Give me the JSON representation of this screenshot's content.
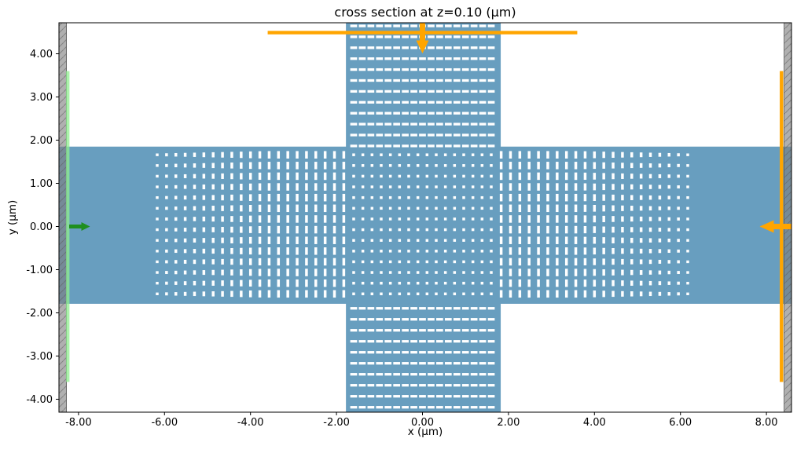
{
  "figure": {
    "title": "cross section at z=0.10 (μm)",
    "xlabel": "x (μm)",
    "ylabel": "y (μm)",
    "background": "#ffffff"
  },
  "chart_data": {
    "type": "simulation-cross-section-2d",
    "title": "cross section at z=0.10 (μm)",
    "xlabel": "x (μm)",
    "ylabel": "y (μm)",
    "xlim": [
      -8.455,
      8.583
    ],
    "ylim": [
      -4.3,
      4.718
    ],
    "xticks": [
      -8,
      -6,
      -4,
      -2,
      0,
      2,
      4,
      6,
      8
    ],
    "xtick_labels": [
      "-8.00",
      "-6.00",
      "-4.00",
      "-2.00",
      "0.00",
      "2.00",
      "4.00",
      "6.00",
      "8.00"
    ],
    "yticks": [
      -4,
      -3,
      -2,
      -1,
      0,
      1,
      2,
      3,
      4
    ],
    "ytick_labels": [
      "-4.00",
      "-3.00",
      "-2.00",
      "-1.00",
      "0.00",
      "1.00",
      "2.00",
      "3.00",
      "4.00"
    ],
    "grid": false,
    "colors": {
      "material": "#689EBF",
      "hole": "#FFFFFF",
      "pml": "#808080",
      "source_line": "#90EE90",
      "source_arrow": "#1F8F1F",
      "monitor": "#FFA500",
      "spine": "#000000"
    },
    "structure": {
      "horizontal_waveguide": {
        "y_min": -1.79,
        "y_max": 1.85
      },
      "vertical_waveguide": {
        "x_min": -1.78,
        "x_max": 1.82
      },
      "hole_rows_y": {
        "start": 1.66,
        "pitch": 0.2477,
        "count": 14
      },
      "central_cols_x": {
        "start": -1.6,
        "pitch": 0.2133,
        "count": 16
      },
      "central_hole_size": [
        0.064,
        0.064
      ],
      "arm_cols": {
        "outer_x": 6.17,
        "pitch_inward": 0.217,
        "count": 21
      },
      "arm_hole_width": 0.064,
      "arm_hole_height": {
        "min": 0.062,
        "step_per_col": 0.0095,
        "max": 0.173
      },
      "vertical_arm_cols_x": {
        "start": -1.6,
        "pitch": 0.2,
        "count": 17
      },
      "vertical_arm_rows_top": {
        "start": 4.645,
        "pitch": 0.2527,
        "count": 12
      },
      "vertical_arm_rows_bottom": {
        "start": -1.895,
        "pitch": 0.2545,
        "count": 10
      },
      "vertical_arm_hole_size": [
        0.159,
        0.06
      ]
    },
    "pml_bars": [
      {
        "x_min": -8.455,
        "x_max": -8.28
      },
      {
        "x_min": 8.41,
        "x_max": 8.583
      }
    ],
    "source": {
      "orientation": "vertical",
      "x": -8.25,
      "y_span": [
        -3.6,
        3.6
      ],
      "direction": "+x"
    },
    "monitors": [
      {
        "orientation": "horizontal",
        "y": 4.49,
        "x_span": [
          -3.6,
          3.6
        ],
        "arrow_direction": "-y"
      },
      {
        "orientation": "vertical",
        "x": 8.35,
        "y_span": [
          -3.6,
          3.6
        ],
        "arrow_direction": "-x"
      }
    ]
  }
}
